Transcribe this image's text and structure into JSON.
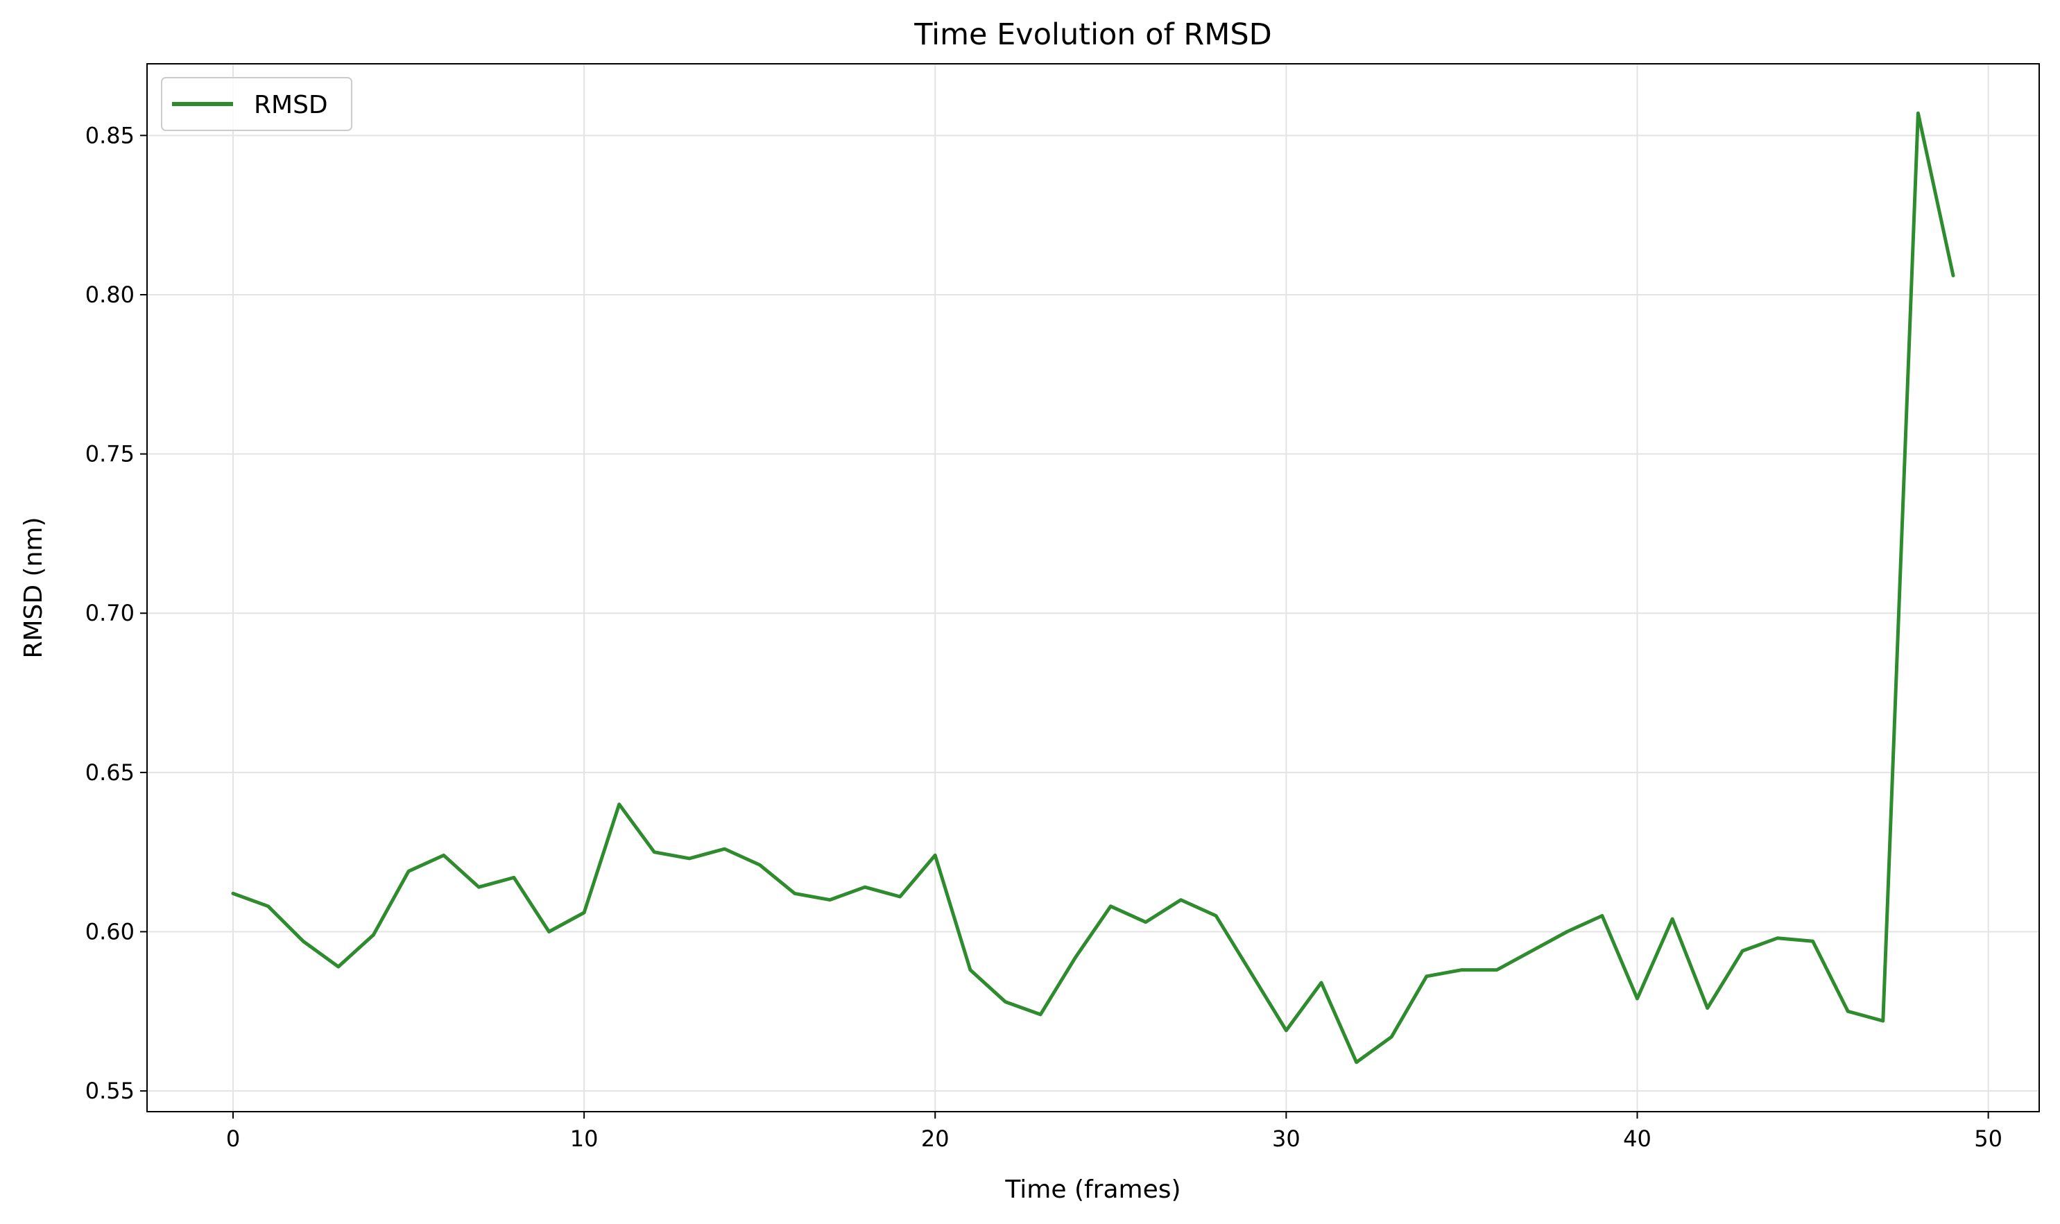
{
  "chart_data": {
    "type": "line",
    "title": "Time Evolution of RMSD",
    "xlabel": "Time (frames)",
    "ylabel": "RMSD (nm)",
    "xlim": [
      -2.45,
      51.45
    ],
    "ylim": [
      0.5435,
      0.8725
    ],
    "xticks": [
      0,
      10,
      20,
      30,
      40,
      50
    ],
    "xtick_labels": [
      "0",
      "10",
      "20",
      "30",
      "40",
      "50"
    ],
    "yticks": [
      0.55,
      0.6,
      0.65,
      0.7,
      0.75,
      0.8,
      0.85
    ],
    "ytick_labels": [
      "0.55",
      "0.60",
      "0.65",
      "0.70",
      "0.75",
      "0.80",
      "0.85"
    ],
    "grid": true,
    "legend": "top-left",
    "series": [
      {
        "name": "RMSD",
        "color": "#2e8b2e",
        "x": [
          0,
          1,
          2,
          3,
          4,
          5,
          6,
          7,
          8,
          9,
          10,
          11,
          12,
          13,
          14,
          15,
          16,
          17,
          18,
          19,
          20,
          21,
          22,
          23,
          24,
          25,
          26,
          27,
          28,
          29,
          30,
          31,
          32,
          33,
          34,
          35,
          36,
          37,
          38,
          39,
          40,
          41,
          42,
          43,
          44,
          45,
          46,
          47,
          48,
          49
        ],
        "values": [
          0.612,
          0.608,
          0.597,
          0.589,
          0.599,
          0.619,
          0.624,
          0.614,
          0.617,
          0.6,
          0.606,
          0.64,
          0.625,
          0.623,
          0.626,
          0.621,
          0.612,
          0.61,
          0.614,
          0.611,
          0.624,
          0.588,
          0.578,
          0.574,
          0.592,
          0.608,
          0.603,
          0.61,
          0.605,
          0.587,
          0.569,
          0.584,
          0.559,
          0.567,
          0.586,
          0.588,
          0.588,
          0.594,
          0.6,
          0.605,
          0.579,
          0.604,
          0.576,
          0.594,
          0.598,
          0.597,
          0.575,
          0.572,
          0.857,
          0.806
        ]
      }
    ]
  }
}
